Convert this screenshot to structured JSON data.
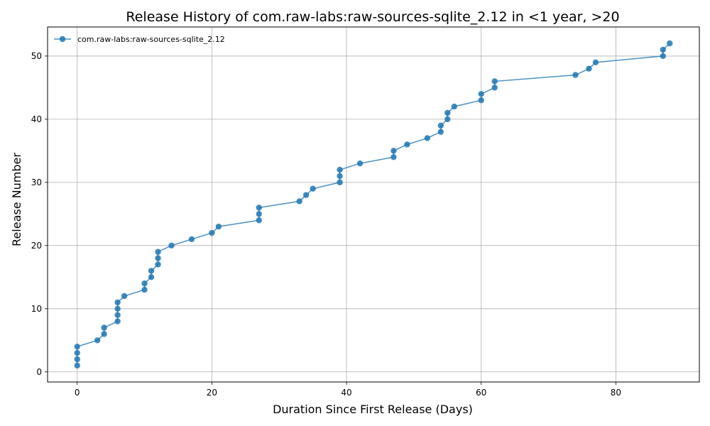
{
  "chart_data": {
    "type": "line",
    "title": "Release History of com.raw-labs:raw-sources-sqlite_2.12 in <1 year, >20",
    "xlabel": "Duration Since First Release (Days)",
    "ylabel": "Release Number",
    "xlim": [
      -4.4,
      92.4
    ],
    "ylim": [
      -1.6,
      54.6
    ],
    "xticks": [
      0,
      20,
      40,
      60,
      80
    ],
    "yticks": [
      0,
      10,
      20,
      30,
      40,
      50
    ],
    "grid": true,
    "legend_position": "top-left",
    "series": [
      {
        "name": "com.raw-labs:raw-sources-sqlite_2.12",
        "color": "#1f77b4",
        "points": [
          {
            "x": 0,
            "y": 1
          },
          {
            "x": 0,
            "y": 2
          },
          {
            "x": 0,
            "y": 3
          },
          {
            "x": 0,
            "y": 4
          },
          {
            "x": 3,
            "y": 5
          },
          {
            "x": 4,
            "y": 6
          },
          {
            "x": 4,
            "y": 7
          },
          {
            "x": 6,
            "y": 8
          },
          {
            "x": 6,
            "y": 9
          },
          {
            "x": 6,
            "y": 10
          },
          {
            "x": 6,
            "y": 11
          },
          {
            "x": 7,
            "y": 12
          },
          {
            "x": 10,
            "y": 13
          },
          {
            "x": 10,
            "y": 14
          },
          {
            "x": 11,
            "y": 15
          },
          {
            "x": 11,
            "y": 16
          },
          {
            "x": 12,
            "y": 17
          },
          {
            "x": 12,
            "y": 18
          },
          {
            "x": 12,
            "y": 19
          },
          {
            "x": 14,
            "y": 20
          },
          {
            "x": 17,
            "y": 21
          },
          {
            "x": 20,
            "y": 22
          },
          {
            "x": 21,
            "y": 23
          },
          {
            "x": 27,
            "y": 24
          },
          {
            "x": 27,
            "y": 25
          },
          {
            "x": 27,
            "y": 26
          },
          {
            "x": 33,
            "y": 27
          },
          {
            "x": 34,
            "y": 28
          },
          {
            "x": 35,
            "y": 29
          },
          {
            "x": 39,
            "y": 30
          },
          {
            "x": 39,
            "y": 31
          },
          {
            "x": 39,
            "y": 32
          },
          {
            "x": 42,
            "y": 33
          },
          {
            "x": 47,
            "y": 34
          },
          {
            "x": 47,
            "y": 35
          },
          {
            "x": 49,
            "y": 36
          },
          {
            "x": 52,
            "y": 37
          },
          {
            "x": 54,
            "y": 38
          },
          {
            "x": 54,
            "y": 39
          },
          {
            "x": 55,
            "y": 40
          },
          {
            "x": 55,
            "y": 41
          },
          {
            "x": 56,
            "y": 42
          },
          {
            "x": 60,
            "y": 43
          },
          {
            "x": 60,
            "y": 44
          },
          {
            "x": 62,
            "y": 45
          },
          {
            "x": 62,
            "y": 46
          },
          {
            "x": 74,
            "y": 47
          },
          {
            "x": 76,
            "y": 48
          },
          {
            "x": 77,
            "y": 49
          },
          {
            "x": 87,
            "y": 50
          },
          {
            "x": 87,
            "y": 51
          },
          {
            "x": 88,
            "y": 52
          }
        ]
      }
    ]
  }
}
